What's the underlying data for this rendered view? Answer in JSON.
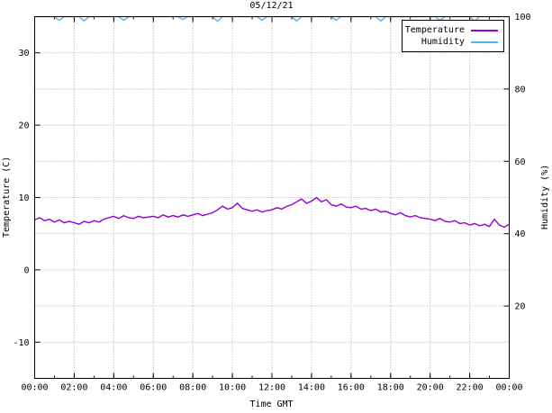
{
  "chart_data": {
    "type": "line",
    "title": "05/12/21",
    "xlabel": "Time GMT",
    "ylabel": "Temperature (C)",
    "y2label": "Humidity (%)",
    "x_unit": "hours",
    "x_range": [
      0,
      24
    ],
    "x_major_ticks": [
      0,
      2,
      4,
      6,
      8,
      10,
      12,
      14,
      16,
      18,
      20,
      22,
      24
    ],
    "x_tick_labels": [
      "00:00",
      "02:00",
      "04:00",
      "06:00",
      "08:00",
      "10:00",
      "12:00",
      "14:00",
      "16:00",
      "18:00",
      "20:00",
      "22:00",
      "00:00"
    ],
    "x_minor_tick_step": 1,
    "y_left_range": [
      -15,
      35
    ],
    "y_left_ticks": [
      -10,
      0,
      10,
      20,
      30
    ],
    "y_right_range": [
      0,
      100
    ],
    "y_right_ticks": [
      20,
      40,
      60,
      80,
      100
    ],
    "grid": "dotted",
    "grid_color": "#a8a8a8",
    "legend": {
      "position": "top-right",
      "entries": [
        {
          "label": "Temperature",
          "color": "#9400d3"
        },
        {
          "label": "Humidity",
          "color": "#56b4e9"
        }
      ]
    },
    "series": [
      {
        "name": "Temperature",
        "axis": "left",
        "color": "#9400d3",
        "x_start": 0,
        "x_step": 0.25,
        "values": [
          6.9,
          7.2,
          6.8,
          7.0,
          6.6,
          6.9,
          6.5,
          6.7,
          6.5,
          6.3,
          6.7,
          6.5,
          6.8,
          6.6,
          7.0,
          7.2,
          7.4,
          7.1,
          7.5,
          7.2,
          7.1,
          7.4,
          7.2,
          7.3,
          7.4,
          7.2,
          7.6,
          7.3,
          7.5,
          7.3,
          7.6,
          7.4,
          7.6,
          7.8,
          7.5,
          7.7,
          7.9,
          8.3,
          8.8,
          8.4,
          8.6,
          9.2,
          8.5,
          8.3,
          8.1,
          8.3,
          8.0,
          8.2,
          8.3,
          8.6,
          8.4,
          8.8,
          9.0,
          9.4,
          9.8,
          9.2,
          9.5,
          10.0,
          9.4,
          9.7,
          9.0,
          8.8,
          9.1,
          8.7,
          8.6,
          8.8,
          8.4,
          8.5,
          8.2,
          8.4,
          8.0,
          8.1,
          7.8,
          7.6,
          7.9,
          7.5,
          7.3,
          7.5,
          7.2,
          7.1,
          7.0,
          6.8,
          7.1,
          6.7,
          6.6,
          6.8,
          6.4,
          6.5,
          6.2,
          6.4,
          6.1,
          6.3,
          6.0,
          7.0,
          6.2,
          5.9,
          6.3
        ]
      },
      {
        "name": "Humidity",
        "axis": "right",
        "color": "#56b4e9",
        "x_start": 0,
        "x_step": 0.25,
        "values": [
          100,
          100,
          100,
          100,
          100,
          99.0,
          100,
          100,
          100,
          100,
          98.8,
          100,
          100,
          100,
          100,
          100,
          100,
          100,
          99.0,
          100,
          100,
          100,
          100,
          100,
          100,
          100,
          100,
          100,
          100,
          100,
          99.2,
          100,
          100,
          100,
          100,
          100,
          100,
          98.7,
          100,
          100,
          100,
          100,
          100,
          100,
          100,
          100,
          99.0,
          100,
          100,
          100,
          100,
          100,
          100,
          98.8,
          100,
          100,
          100,
          100,
          100,
          100,
          100,
          99.0,
          100,
          100,
          100,
          100,
          100,
          100,
          100,
          100,
          98.8,
          100,
          100,
          100,
          100,
          100,
          100,
          100,
          100,
          100,
          100,
          100,
          99.0,
          100,
          100,
          100,
          100,
          100,
          100,
          98.8,
          100,
          100,
          100,
          100,
          100,
          100,
          100
        ]
      }
    ]
  }
}
